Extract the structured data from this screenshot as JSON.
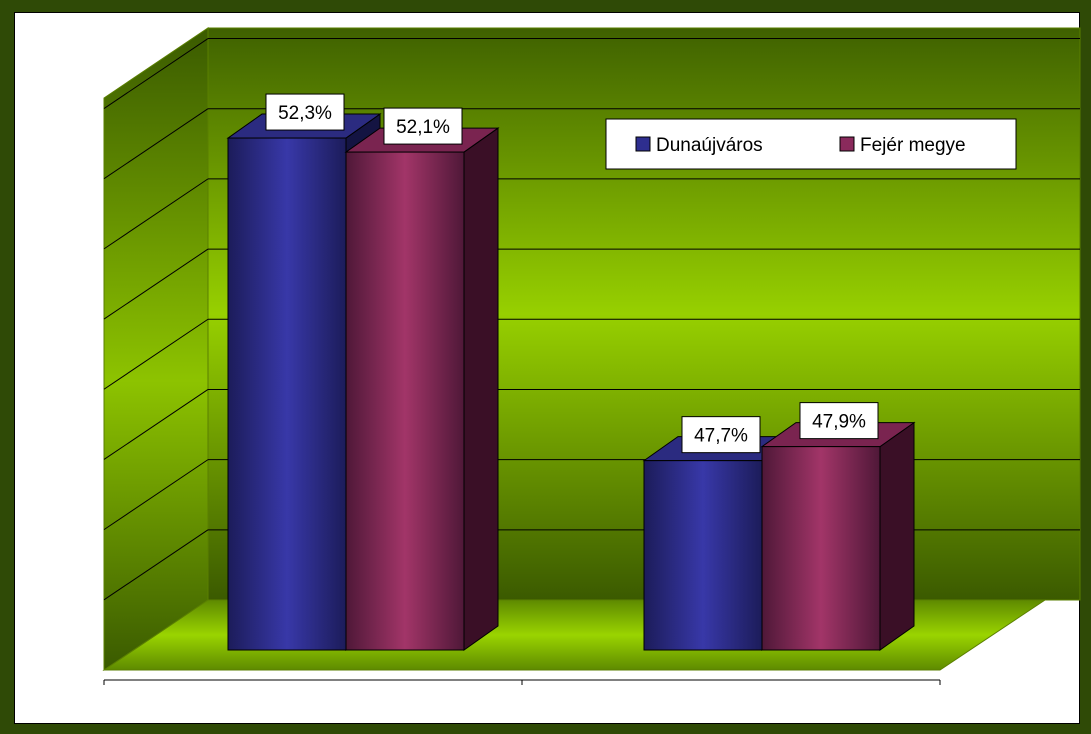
{
  "chart_data": {
    "type": "bar",
    "style": "3d-clustered-column",
    "categories": [
      "",
      ""
    ],
    "series": [
      {
        "name": "Dunaújváros",
        "values": [
          52.3,
          47.7
        ],
        "labels": [
          "52,3%",
          "47,7%"
        ],
        "color": "#2e2e8f"
      },
      {
        "name": "Fejér megye",
        "values": [
          52.1,
          47.9
        ],
        "labels": [
          "52,1%",
          "47,9%"
        ],
        "color": "#8a2a5c"
      }
    ],
    "ylim": [
      45.0,
      52.7
    ],
    "grid": true,
    "legend_position": "top-right",
    "plot_background": "#7fb800"
  }
}
